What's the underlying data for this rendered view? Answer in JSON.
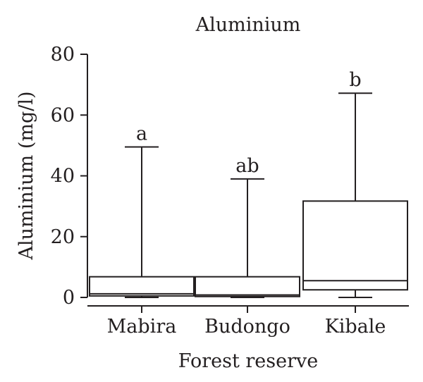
{
  "chart_data": {
    "type": "box",
    "title": "Aluminium",
    "xlabel": "Forest reserve",
    "ylabel": "Aluminium (mg/l)",
    "ylim": [
      0,
      80
    ],
    "yticks": [
      0,
      20,
      40,
      60,
      80
    ],
    "categories": [
      "Mabira",
      "Budongo",
      "Kibale"
    ],
    "boxes": [
      {
        "min": 0,
        "q1": 0.5,
        "median": 1.2,
        "q3": 6.8,
        "max": 49.5,
        "label": "a"
      },
      {
        "min": 0,
        "q1": 0.3,
        "median": 0.8,
        "q3": 6.8,
        "max": 39.0,
        "label": "ab"
      },
      {
        "min": 0,
        "q1": 2.5,
        "median": 5.5,
        "q3": 31.7,
        "max": 67.2,
        "label": "b"
      }
    ],
    "grid": false,
    "legend": "none"
  }
}
